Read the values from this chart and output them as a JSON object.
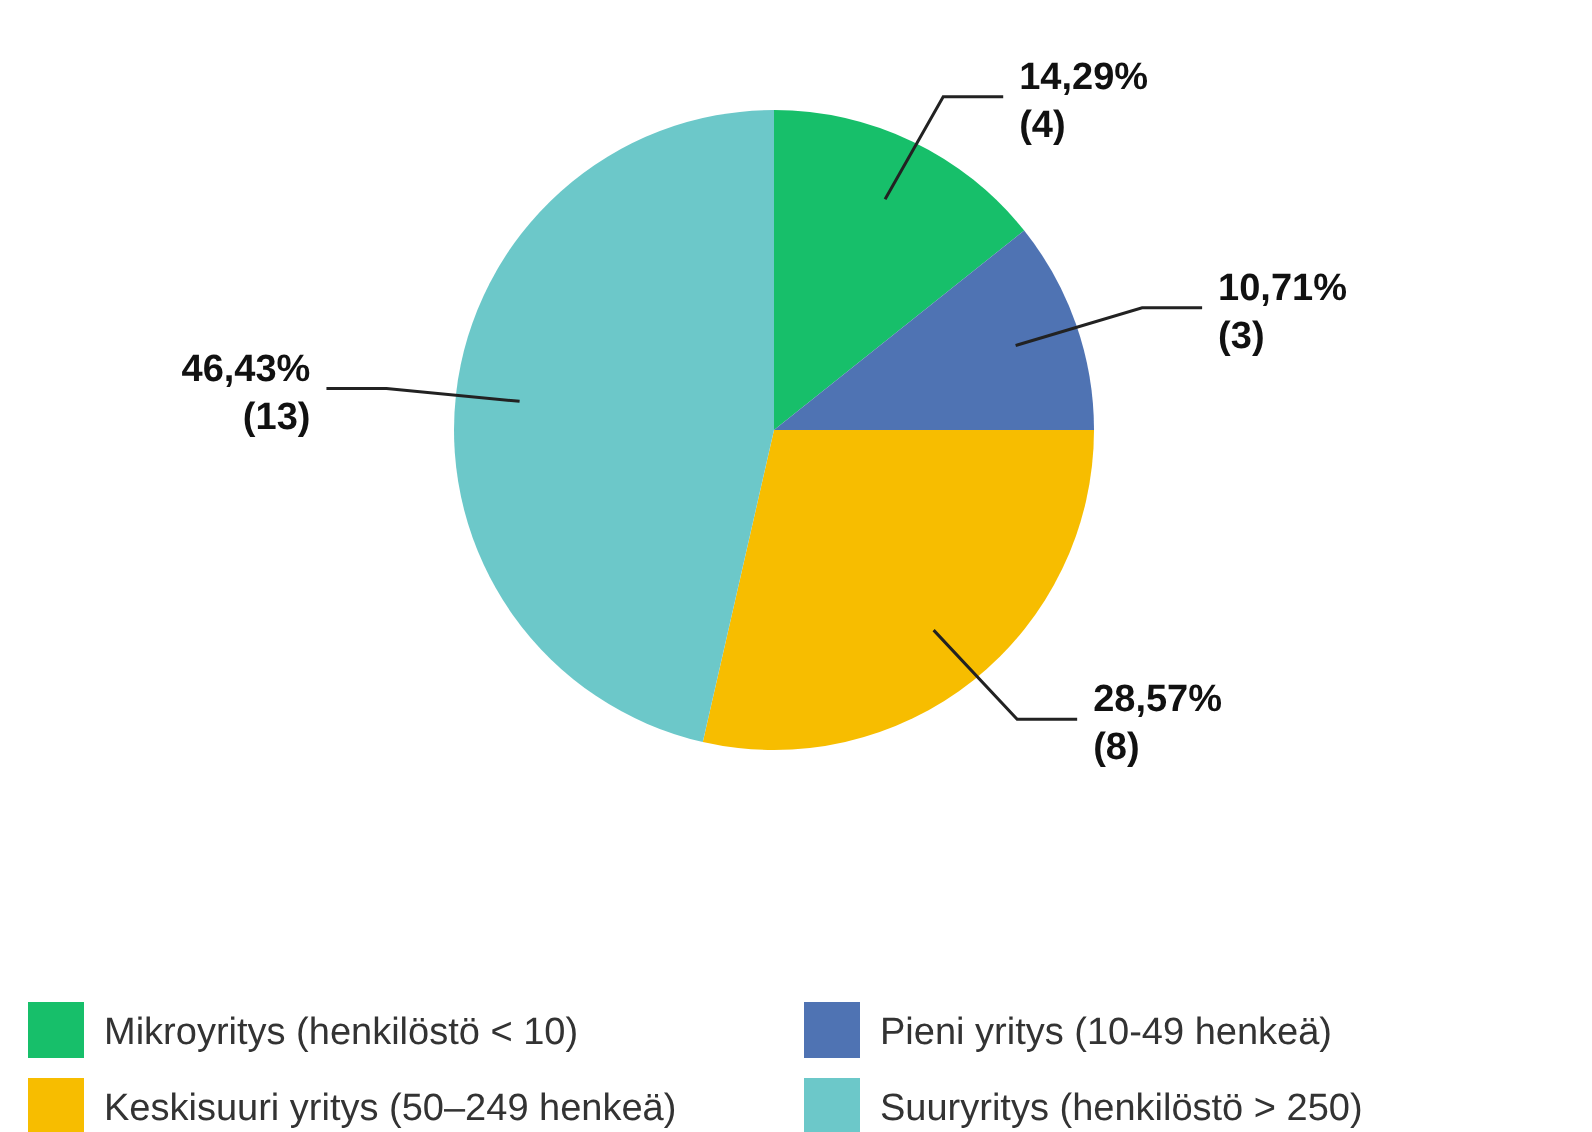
{
  "chart_data": {
    "type": "pie",
    "categories": [
      "Mikroyritys (henkilöstö < 10)",
      "Pieni yritys (10-49 henkeä)",
      "Keskisuuri yritys (50–249 henkeä)",
      "Suuryritys (henkilöstö > 250)"
    ],
    "values": [
      4,
      3,
      8,
      13
    ],
    "colors": [
      "#17bf6a",
      "#4f73b3",
      "#f7bd00",
      "#6cc8c9"
    ],
    "value_labels": [
      "14,29%\n(4)",
      "10,71%\n(3)",
      "28,57%\n(8)",
      "46,43%\n(13)"
    ],
    "legend": "bottom"
  }
}
